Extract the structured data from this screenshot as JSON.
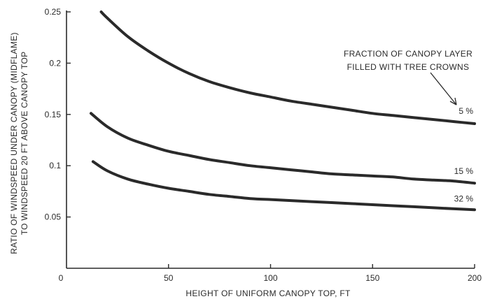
{
  "chart_data": {
    "type": "line",
    "title": "",
    "xlabel": "HEIGHT OF UNIFORM CANOPY TOP, FT",
    "ylabel_lines": [
      "RATIO OF WINDSPEED UNDER CANOPY (MIDFLAME)",
      "TO WINDSPEED 20 FT ABOVE CANOPY TOP"
    ],
    "xlim": [
      0,
      200
    ],
    "ylim": [
      0,
      0.25
    ],
    "xticks": [
      0,
      50,
      100,
      150,
      200
    ],
    "xtick_labels": [
      "0",
      "50",
      "100",
      "150",
      "200"
    ],
    "yticks": [
      0.05,
      0.1,
      0.15,
      0.2,
      0.25
    ],
    "ytick_labels": [
      "0.05",
      "0.1",
      "0.15",
      "0.2",
      "0.25"
    ],
    "grid": false,
    "annotation_lines": [
      "FRACTION OF CANOPY LAYER",
      "FILLED WITH TREE CROWNS"
    ],
    "series": [
      {
        "label": "5 %",
        "x": [
          17,
          20,
          30,
          40,
          50,
          60,
          70,
          80,
          90,
          100,
          110,
          120,
          130,
          140,
          150,
          160,
          170,
          180,
          190,
          200
        ],
        "y": [
          0.25,
          0.244,
          0.226,
          0.212,
          0.2,
          0.19,
          0.182,
          0.176,
          0.171,
          0.167,
          0.163,
          0.16,
          0.157,
          0.154,
          0.151,
          0.149,
          0.147,
          0.145,
          0.143,
          0.141
        ]
      },
      {
        "label": "15 %",
        "x": [
          12,
          20,
          30,
          40,
          50,
          60,
          70,
          80,
          90,
          100,
          110,
          120,
          130,
          140,
          150,
          160,
          170,
          180,
          190,
          200
        ],
        "y": [
          0.151,
          0.138,
          0.127,
          0.12,
          0.114,
          0.11,
          0.106,
          0.103,
          0.1,
          0.098,
          0.096,
          0.094,
          0.092,
          0.091,
          0.09,
          0.089,
          0.087,
          0.086,
          0.085,
          0.083
        ]
      },
      {
        "label": "32 %",
        "x": [
          13,
          20,
          30,
          40,
          50,
          60,
          70,
          80,
          90,
          100,
          110,
          120,
          130,
          140,
          150,
          160,
          170,
          180,
          190,
          200
        ],
        "y": [
          0.104,
          0.095,
          0.087,
          0.082,
          0.078,
          0.075,
          0.072,
          0.07,
          0.068,
          0.067,
          0.066,
          0.065,
          0.064,
          0.063,
          0.062,
          0.061,
          0.06,
          0.059,
          0.058,
          0.057
        ]
      }
    ]
  }
}
